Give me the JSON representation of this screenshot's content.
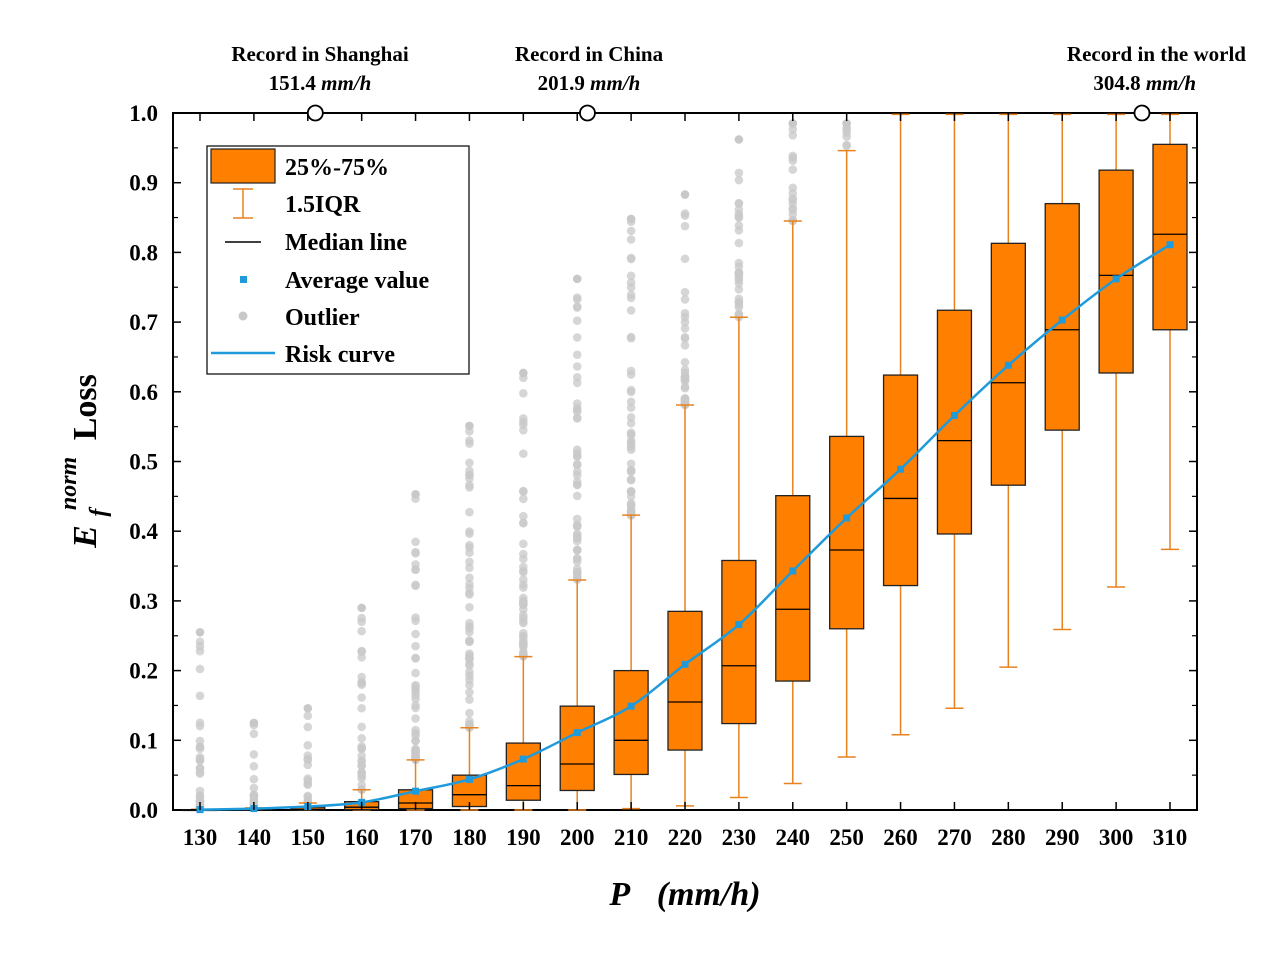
{
  "chart_data": {
    "type": "box",
    "xlabel": {
      "main": "P",
      "unit": "(mm/h)"
    },
    "ylabel": {
      "base": "E",
      "sub": "f",
      "sup": "norm",
      "suffix": "Loss"
    },
    "xlim": [
      130,
      310
    ],
    "ylim": [
      0,
      1
    ],
    "x_ticks": [
      130,
      140,
      150,
      160,
      170,
      180,
      190,
      200,
      210,
      220,
      230,
      240,
      250,
      260,
      270,
      280,
      290,
      300,
      310
    ],
    "y_ticks": [
      0.0,
      0.1,
      0.2,
      0.3,
      0.4,
      0.5,
      0.6,
      0.7,
      0.8,
      0.9,
      1.0
    ],
    "y_tick_labels": [
      "0.0",
      "0.1",
      "0.2",
      "0.3",
      "0.4",
      "0.5",
      "0.6",
      "0.7",
      "0.8",
      "0.9",
      "1.0"
    ],
    "legend": {
      "position": "top-left",
      "entries": [
        "25%-75%",
        "1.5IQR",
        "Median line",
        "Average value",
        "Outlier",
        "Risk curve"
      ]
    },
    "annotations": [
      {
        "line1": "Record in Shanghai",
        "value": "151.4",
        "unit": "mm/h",
        "x": 151.4
      },
      {
        "line1": "Record in China",
        "value": "201.9",
        "unit": "mm/h",
        "x": 201.9
      },
      {
        "line1": "Record in the world",
        "value": "304.8",
        "unit": "mm/h",
        "x": 304.8
      }
    ],
    "boxes": [
      {
        "x": 130,
        "q1": 0.0,
        "median": 0.0,
        "q3": 0.0005,
        "whisker_low": 0.0,
        "whisker_high": 0.001,
        "mean": 0.0005,
        "outlier_max": 0.255
      },
      {
        "x": 140,
        "q1": 0.0,
        "median": 0.0,
        "q3": 0.001,
        "whisker_low": 0.0,
        "whisker_high": 0.003,
        "mean": 0.002,
        "outlier_max": 0.125
      },
      {
        "x": 150,
        "q1": 0.0,
        "median": 0.001,
        "q3": 0.004,
        "whisker_low": 0.0,
        "whisker_high": 0.01,
        "mean": 0.005,
        "outlier_max": 0.146
      },
      {
        "x": 160,
        "q1": 0.0005,
        "median": 0.004,
        "q3": 0.012,
        "whisker_low": 0.0,
        "whisker_high": 0.029,
        "mean": 0.011,
        "outlier_max": 0.29
      },
      {
        "x": 170,
        "q1": 0.002,
        "median": 0.01,
        "q3": 0.029,
        "whisker_low": 0.0,
        "whisker_high": 0.072,
        "mean": 0.027,
        "outlier_max": 0.453
      },
      {
        "x": 180,
        "q1": 0.005,
        "median": 0.022,
        "q3": 0.05,
        "whisker_low": 0.0,
        "whisker_high": 0.118,
        "mean": 0.044,
        "outlier_max": 0.551
      },
      {
        "x": 190,
        "q1": 0.014,
        "median": 0.035,
        "q3": 0.096,
        "whisker_low": 0.0,
        "whisker_high": 0.22,
        "mean": 0.073,
        "outlier_max": 0.627
      },
      {
        "x": 200,
        "q1": 0.028,
        "median": 0.066,
        "q3": 0.149,
        "whisker_low": 0.0,
        "whisker_high": 0.33,
        "mean": 0.111,
        "outlier_max": 0.762
      },
      {
        "x": 210,
        "q1": 0.051,
        "median": 0.1,
        "q3": 0.2,
        "whisker_low": 0.002,
        "whisker_high": 0.423,
        "mean": 0.149,
        "outlier_max": 0.848
      },
      {
        "x": 220,
        "q1": 0.086,
        "median": 0.155,
        "q3": 0.285,
        "whisker_low": 0.006,
        "whisker_high": 0.581,
        "mean": 0.209,
        "outlier_max": 0.883
      },
      {
        "x": 230,
        "q1": 0.124,
        "median": 0.207,
        "q3": 0.358,
        "whisker_low": 0.018,
        "whisker_high": 0.707,
        "mean": 0.266,
        "outlier_max": 0.962
      },
      {
        "x": 240,
        "q1": 0.185,
        "median": 0.288,
        "q3": 0.451,
        "whisker_low": 0.038,
        "whisker_high": 0.845,
        "mean": 0.343,
        "outlier_max": 0.985
      },
      {
        "x": 250,
        "q1": 0.26,
        "median": 0.373,
        "q3": 0.536,
        "whisker_low": 0.076,
        "whisker_high": 0.946,
        "mean": 0.419,
        "outlier_max": 0.985
      },
      {
        "x": 260,
        "q1": 0.322,
        "median": 0.447,
        "q3": 0.624,
        "whisker_low": 0.108,
        "whisker_high": 0.998,
        "mean": 0.489,
        "outlier_max": null
      },
      {
        "x": 270,
        "q1": 0.396,
        "median": 0.53,
        "q3": 0.717,
        "whisker_low": 0.146,
        "whisker_high": 0.998,
        "mean": 0.566,
        "outlier_max": null
      },
      {
        "x": 280,
        "q1": 0.466,
        "median": 0.613,
        "q3": 0.813,
        "whisker_low": 0.205,
        "whisker_high": 0.998,
        "mean": 0.638,
        "outlier_max": null
      },
      {
        "x": 290,
        "q1": 0.545,
        "median": 0.689,
        "q3": 0.87,
        "whisker_low": 0.259,
        "whisker_high": 0.998,
        "mean": 0.703,
        "outlier_max": null
      },
      {
        "x": 300,
        "q1": 0.627,
        "median": 0.767,
        "q3": 0.918,
        "whisker_low": 0.32,
        "whisker_high": 0.998,
        "mean": 0.762,
        "outlier_max": null
      },
      {
        "x": 310,
        "q1": 0.689,
        "median": 0.826,
        "q3": 0.955,
        "whisker_low": 0.374,
        "whisker_high": 0.998,
        "mean": 0.811,
        "outlier_max": null
      }
    ],
    "colors": {
      "box_fill": "#ff7f00",
      "box_edge": "#222222",
      "whisker": "#e8821e",
      "median": "#000000",
      "mean_marker": "#1f9bdc",
      "risk_curve": "#1f9bdc",
      "outlier": "#c8c8c8"
    }
  }
}
